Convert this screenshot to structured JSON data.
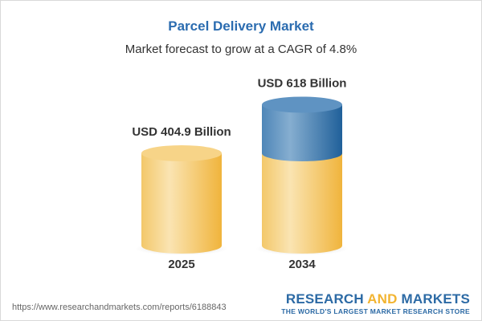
{
  "title": "Parcel Delivery Market",
  "subtitle": "Market forecast to grow at a CAGR of 4.8%",
  "chart_data": {
    "type": "bar",
    "style": "3d-cylinder",
    "categories": [
      "2025",
      "2034"
    ],
    "values": [
      404.9,
      618
    ],
    "data_labels": [
      "USD 404.9 Billion",
      "USD 618 Billion"
    ],
    "unit": "USD Billion",
    "colors": {
      "base": "#f2c35a",
      "growth": "#3c78ad"
    },
    "grid": false
  },
  "footer": {
    "url": "https://www.researchandmarkets.com/reports/6188843",
    "logo_part1": "RESEARCH ",
    "logo_part2": "AND",
    "logo_part3": " MARKETS",
    "tagline": "THE WORLD'S LARGEST MARKET RESEARCH STORE"
  }
}
